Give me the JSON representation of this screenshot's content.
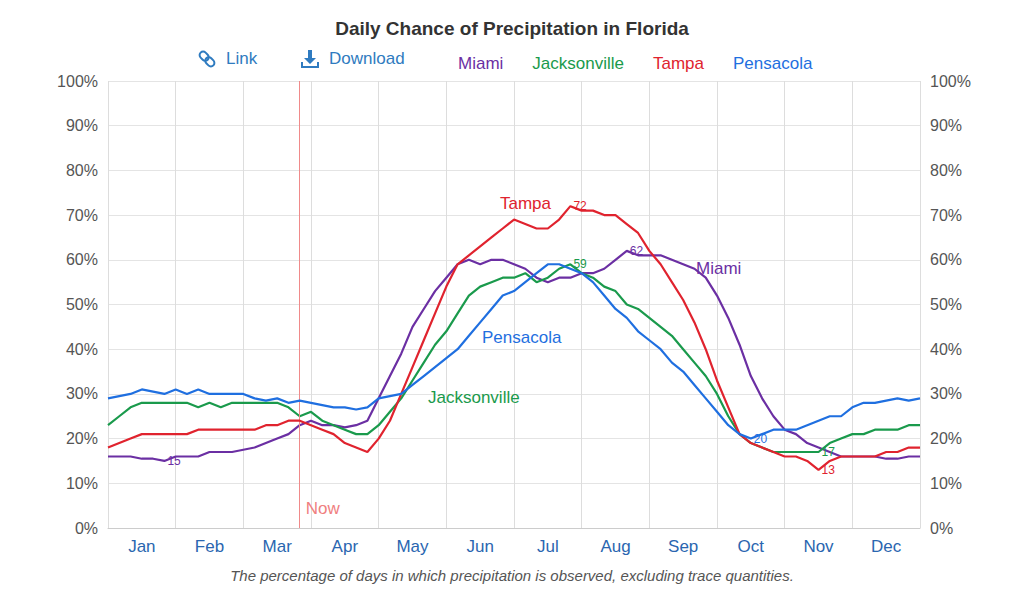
{
  "chart_data": {
    "type": "line",
    "title": "Daily Chance of Precipitation in Florida",
    "caption": "The percentage of days in which precipitation is observed, excluding trace quantities.",
    "toolbar": [
      "Link",
      "Download"
    ],
    "categories": [
      null,
      null,
      null,
      "Jan",
      null,
      null,
      null,
      null,
      null,
      "Feb",
      null,
      null,
      null,
      null,
      null,
      "Mar",
      null,
      null,
      null,
      null,
      null,
      "Apr",
      null,
      null,
      null,
      null,
      null,
      "May",
      null,
      null,
      null,
      null,
      null,
      "Jun",
      null,
      null,
      null,
      null,
      null,
      "Jul",
      null,
      null,
      null,
      null,
      null,
      "Aug",
      null,
      null,
      null,
      null,
      null,
      "Sep",
      null,
      null,
      null,
      null,
      null,
      "Oct",
      null,
      null,
      null,
      null,
      null,
      "Nov",
      null,
      null,
      null,
      null,
      null,
      "Dec",
      null,
      null,
      null
    ],
    "series": [
      {
        "name": "Miami",
        "color": "#6b2fa3",
        "values": [
          16,
          16,
          16,
          15.5,
          15.5,
          15,
          16,
          16,
          16,
          17,
          17,
          17,
          17.5,
          18,
          19,
          20,
          21,
          23,
          24,
          23,
          23,
          22.5,
          23,
          24,
          29,
          34,
          39,
          45,
          49,
          53,
          56,
          59,
          60,
          59,
          60,
          60,
          59,
          58,
          56,
          55,
          56,
          56,
          57,
          57,
          58,
          60,
          62,
          61,
          61,
          61,
          60,
          59,
          58,
          56,
          52,
          47,
          41,
          34,
          29,
          25,
          22,
          21,
          19,
          18,
          17,
          16,
          16,
          16,
          16,
          15.5,
          15.5,
          16,
          16
        ]
      },
      {
        "name": "Jacksonville",
        "color": "#1a9a4c",
        "values": [
          23,
          25,
          27,
          28,
          28,
          28,
          28,
          28,
          27,
          28,
          27,
          28,
          28,
          28,
          28,
          28,
          27,
          25,
          26,
          24,
          23,
          22,
          21,
          21,
          23,
          26,
          29,
          33,
          37,
          41,
          44,
          48,
          52,
          54,
          55,
          56,
          56,
          57,
          55,
          56,
          58,
          59,
          57,
          56,
          54,
          53,
          50,
          49,
          47,
          45,
          43,
          40,
          37,
          34,
          30,
          25,
          21,
          19,
          18,
          17,
          17,
          17,
          17,
          17,
          19,
          20,
          21,
          21,
          22,
          22,
          22,
          23,
          23
        ]
      },
      {
        "name": "Tampa",
        "color": "#e0232e",
        "values": [
          18,
          19,
          20,
          21,
          21,
          21,
          21,
          21,
          22,
          22,
          22,
          22,
          22,
          22,
          23,
          23,
          24,
          24,
          23,
          22,
          21,
          19,
          18,
          17,
          20,
          24,
          30,
          36,
          42,
          48,
          54,
          59,
          61,
          63,
          65,
          67,
          69,
          68,
          67,
          67,
          69,
          72,
          71,
          71,
          70,
          70,
          68,
          66,
          62,
          59,
          55,
          51,
          46,
          40,
          33,
          27,
          21,
          19,
          18,
          17,
          16,
          16,
          15,
          13,
          15,
          16,
          16,
          16,
          16,
          17,
          17,
          18,
          18
        ]
      },
      {
        "name": "Pensacola",
        "color": "#1f6fe0",
        "values": [
          29,
          29.5,
          30,
          31,
          30.5,
          30,
          31,
          30,
          31,
          30,
          30,
          30,
          30,
          29,
          28.5,
          29,
          28,
          28.5,
          28,
          27.5,
          27,
          27,
          26.5,
          27,
          29,
          29.5,
          30,
          32,
          34,
          36,
          38,
          40,
          43,
          46,
          49,
          52,
          53,
          55,
          57,
          59,
          59,
          58,
          57,
          55,
          52,
          49,
          47,
          44,
          42,
          40,
          37,
          35,
          32,
          29,
          26,
          23,
          21,
          20,
          21,
          22,
          22,
          22,
          23,
          24,
          25,
          25,
          27,
          28,
          28,
          28.5,
          29,
          28.5,
          29
        ]
      }
    ],
    "ylim": [
      0,
      100
    ],
    "yticks": [
      {
        "value": 0,
        "label": "0%"
      },
      {
        "value": 10,
        "label": "10%"
      },
      {
        "value": 20,
        "label": "20%"
      },
      {
        "value": 30,
        "label": "30%"
      },
      {
        "value": 40,
        "label": "40%"
      },
      {
        "value": 50,
        "label": "50%"
      },
      {
        "value": 60,
        "label": "60%"
      },
      {
        "value": 70,
        "label": "70%"
      },
      {
        "value": 80,
        "label": "80%"
      },
      {
        "value": 90,
        "label": "90%"
      },
      {
        "value": 100,
        "label": "100%"
      }
    ],
    "grid": true,
    "legend": "top",
    "annotations": [
      {
        "text": "Now",
        "index": 17
      },
      {
        "series": "Tampa",
        "index": 41,
        "value": 72
      },
      {
        "series": "Miami",
        "index": 46,
        "value": 62
      },
      {
        "series": "Jacksonville",
        "index": 41,
        "value": 59
      },
      {
        "series": "Pensacola",
        "index": 57,
        "value": 20
      },
      {
        "series": "Jacksonville",
        "index": 63,
        "value": 17
      },
      {
        "series": "Tampa",
        "index": 63,
        "value": 13
      },
      {
        "series": "Miami",
        "index": 5,
        "value": 15
      }
    ]
  }
}
